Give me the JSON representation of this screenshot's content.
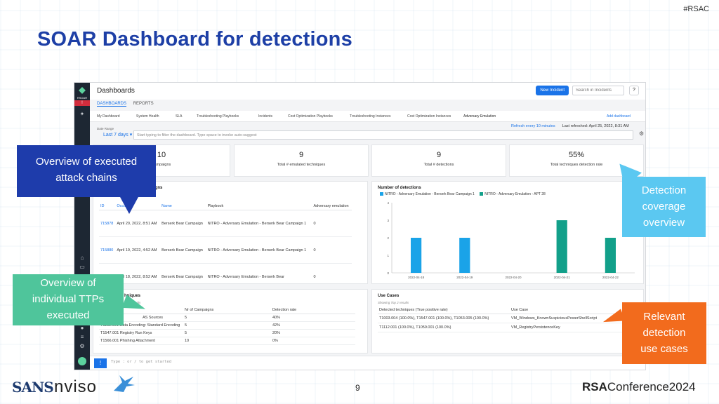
{
  "slide": {
    "hashtag": "#RSAC",
    "title": "SOAR Dashboard for detections",
    "page_number": "9"
  },
  "footer": {
    "sans_logo": "SANS",
    "nviso_logo": "nviso",
    "rsa_bold": "RSA",
    "rsa_rest": "Conference2024"
  },
  "app": {
    "brand": "RSOAR",
    "alert_badge": "!",
    "header_title": "Dashboards",
    "new_incident": "New Incident",
    "search_placeholder": "Search in Incidents",
    "help": "?",
    "tabs": [
      "DASHBOARDS",
      "REPORTS"
    ],
    "subtabs": [
      "My Dashboard",
      "System Health",
      "SLA",
      "Troubleshooting Playbooks",
      "Incidents",
      "Cost Optimization Playbooks",
      "Troubleshooting Instances",
      "Cost Optimization Instances",
      "Adversary Emulation",
      "Add dashboard"
    ],
    "refresh_text": "Refresh every 10 minutes",
    "last_refreshed": "Last refreshed: April 25, 2022, 8:31 AM",
    "date_range_label": "Date Range",
    "date_range_value": "Last 7 days",
    "filter_placeholder": "Start typing to filter the dashboard. Type space to invoke auto-suggest",
    "stats": [
      {
        "value": "10",
        "label": "campaigns"
      },
      {
        "value": "9",
        "label": "Total # emulated techniques"
      },
      {
        "value": "9",
        "label": "Total # detections"
      },
      {
        "value": "55%",
        "label": "Total techniques detection rate"
      }
    ],
    "campaigns": {
      "title": "igns",
      "headers": [
        "ID",
        "Occurred",
        "Name",
        "Playbook",
        "Adversary emulation"
      ],
      "rows": [
        {
          "id": "715878",
          "occurred": "April 20, 2022, 8:51 AM",
          "name": "Berserk Bear Campaign",
          "playbook": "NITRO - Adversary Emulation - Berserk Bear Campaign 1",
          "emulation": "0"
        },
        {
          "id": "715880",
          "occurred": "April 19, 2022, 4:52 AM",
          "name": "Berserk Bear Campaign",
          "playbook": "NITRO - Adversary Emulation - Berserk Bear Campaign 1",
          "emulation": "0"
        },
        {
          "id": "",
          "occurred": "April 18, 2022, 8:52 AM",
          "name": "Berserk Bear Campaign",
          "playbook": "NITRO - Adversary Emulation - Berserk Bear",
          "emulation": "0"
        }
      ]
    },
    "ttps": {
      "title": "hniques",
      "subtitle": "results",
      "headers": [
        "",
        "Nr of Campaigns",
        "Detection rate"
      ],
      "rows": [
        {
          "technique": "AS Sources",
          "campaigns": "5",
          "rate": "40%"
        },
        {
          "technique": "T1132.001 Data Encoding: Standard Encoding",
          "campaigns": "5",
          "rate": "42%"
        },
        {
          "technique": "T1547.001 Registry Run Keys",
          "campaigns": "5",
          "rate": "20%"
        },
        {
          "technique": "T1566.001 Phishing Attachment",
          "campaigns": "10",
          "rate": "0%"
        }
      ]
    },
    "use_cases": {
      "title": "Use Cases",
      "subtitle": "Showing Top 2 results",
      "headers": [
        "Detected techniques (True positive rate)",
        "Use Case"
      ],
      "rows": [
        {
          "techniques": "T1003.004 (100.0%), T1547.001 (100.0%), T1053.005 (100.0%)",
          "use_case": "VM_Windows_KnownSuspiciousPowerShellScript"
        },
        {
          "techniques": "T1112.001 (100.0%), T1059.001 (100.0%)",
          "use_case": "VM_RegistryPersistenceKey"
        }
      ]
    },
    "command_placeholder": "Type : or / to get started",
    "command_button": "!"
  },
  "callouts": {
    "attack_chains": [
      "Overview of executed",
      "attack chains"
    ],
    "ttps": [
      "Overview of",
      "individual TTPs",
      "executed"
    ],
    "coverage": [
      "Detection",
      "coverage",
      "overview"
    ],
    "use_cases": [
      "Relevant",
      "detection",
      "use cases"
    ]
  },
  "chart_data": {
    "type": "bar",
    "title": "Number of detections",
    "categories": [
      "2022-04-18",
      "2022-04-19",
      "2022-04-20",
      "2022-04-21",
      "2022-04-22"
    ],
    "series": [
      {
        "name": "NITRO - Adversary Emulation - Berserk Bear Campaign 1",
        "values": [
          2,
          2,
          0,
          0,
          0
        ],
        "color": "#1aa3e8"
      },
      {
        "name": "NITRO - Adversary Emulation - APT 28",
        "values": [
          0,
          0,
          0,
          3,
          2
        ],
        "color": "#12a08a"
      }
    ],
    "ylim": [
      0,
      4
    ],
    "yticks": [
      0,
      1,
      2,
      3,
      4
    ],
    "legend": "top-left",
    "grid": false
  }
}
